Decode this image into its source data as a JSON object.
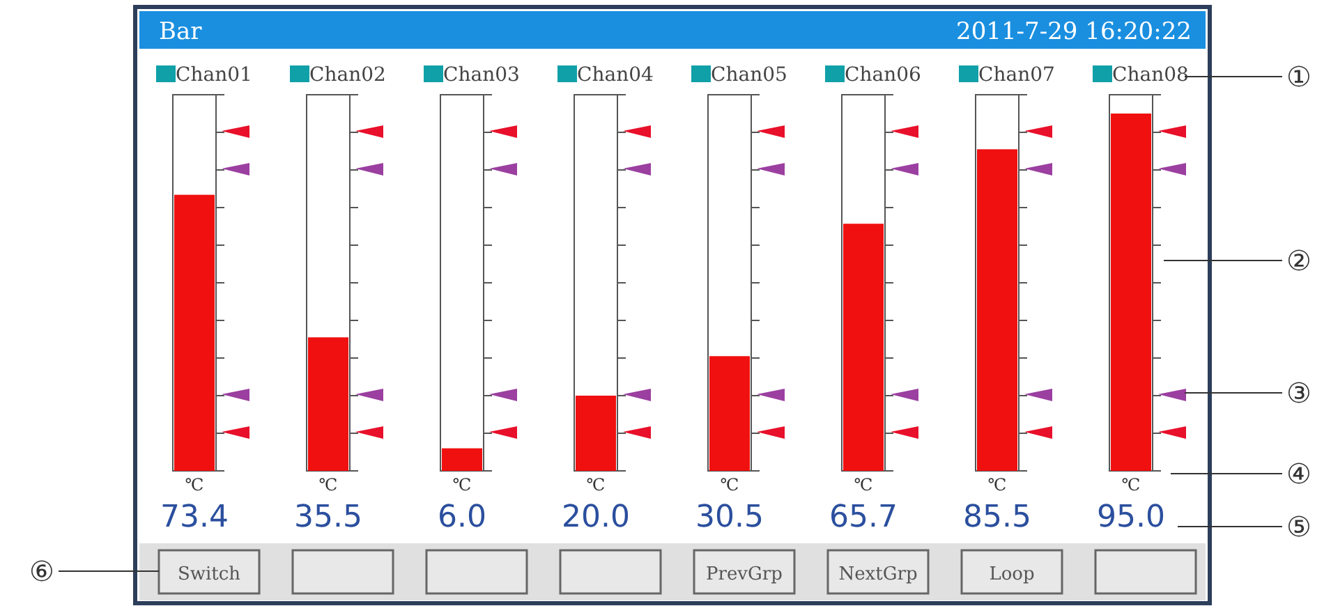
{
  "chart_data": {
    "type": "bar",
    "title": "Bar",
    "subtitle": "2011-7-29   16:20:22",
    "categories": [
      "Chan01",
      "Chan02",
      "Chan03",
      "Chan04",
      "Chan05",
      "Chan06",
      "Chan07",
      "Chan08"
    ],
    "values": [
      73.4,
      35.5,
      6.0,
      20.0,
      30.5,
      65.7,
      85.5,
      95.0
    ],
    "value_labels": [
      "73.4",
      "35.5",
      "6.0",
      "20.0",
      "30.5",
      "65.7",
      "85.5",
      "95.0"
    ],
    "color": "#f01010",
    "ylim": [
      0,
      100
    ],
    "annotations": [
      "℃",
      "①",
      "②",
      "③",
      "④",
      "⑤",
      "⑥",
      "Switch",
      "PrevGrp",
      "NextGrp",
      "Loop"
    ]
  }
}
